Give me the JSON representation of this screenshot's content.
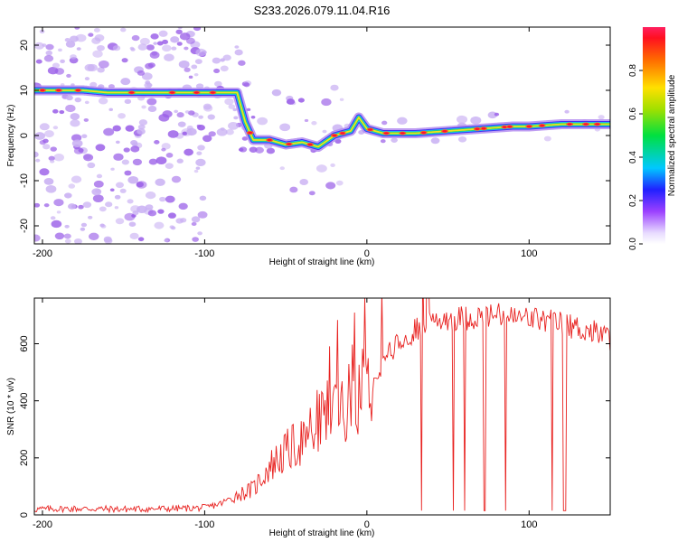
{
  "title": "S233.2026.079.11.04.R16",
  "colors": {
    "snr_line": "#e8211f",
    "axis": "#000000",
    "scatter": "#9b60e8",
    "scatter_light": "#c9b0f3"
  },
  "colorbar": {
    "label": "Normalized spectral amplitude",
    "ticks": [
      "0.0",
      "0.2",
      "0.4",
      "0.6",
      "0.8"
    ],
    "tick_values": [
      0.0,
      0.2,
      0.4,
      0.6,
      0.8
    ],
    "range": [
      0,
      1
    ]
  },
  "chart_data": [
    {
      "type": "heatmap",
      "xlabel": "Height of straight line (km)",
      "ylabel": "Frequency (Hz)",
      "xlim": [
        -205,
        150
      ],
      "ylim": [
        -24,
        24
      ],
      "xticks": [
        -200,
        -100,
        0,
        100
      ],
      "xtick_labels": [
        "-200",
        "-100",
        "0",
        "100"
      ],
      "yticks": [
        -20,
        -10,
        0,
        10,
        20
      ],
      "ytick_labels": [
        "-20",
        "-10",
        "0",
        "10",
        "20"
      ],
      "ridge": {
        "x": [
          -205,
          -190,
          -175,
          -160,
          -150,
          -140,
          -125,
          -110,
          -100,
          -90,
          -80,
          -75,
          -70,
          -60,
          -50,
          -40,
          -30,
          -20,
          -10,
          -5,
          0,
          10,
          30,
          50,
          70,
          90,
          100,
          120,
          150
        ],
        "y": [
          10,
          10,
          10,
          9.5,
          9.5,
          9.5,
          9.5,
          9.5,
          9.5,
          9.5,
          9.5,
          3,
          -1,
          -1,
          -2,
          -1.5,
          -2.5,
          0,
          1,
          4,
          1.5,
          0.5,
          0.5,
          1,
          1.5,
          2,
          2,
          2.5,
          2.5
        ]
      }
    },
    {
      "type": "line",
      "xlabel": "Height of straight line (km)",
      "ylabel": "SNR (10 * v/v)",
      "xlim": [
        -205,
        150
      ],
      "ylim": [
        0,
        760
      ],
      "xticks": [
        -200,
        -100,
        0,
        100
      ],
      "xtick_labels": [
        "-200",
        "-100",
        "0",
        "100"
      ],
      "yticks": [
        0,
        200,
        400,
        600
      ],
      "ytick_labels": [
        "0",
        "200",
        "400",
        "600"
      ],
      "series": [
        {
          "name": "SNR",
          "x": [
            -205,
            -180,
            -150,
            -120,
            -100,
            -90,
            -80,
            -70,
            -60,
            -50,
            -40,
            -30,
            -20,
            -10,
            0,
            10,
            20,
            30,
            40,
            50,
            60,
            70,
            80,
            90,
            100,
            110,
            120,
            130,
            140,
            150
          ],
          "y": [
            20,
            22,
            20,
            22,
            25,
            40,
            70,
            90,
            170,
            220,
            260,
            330,
            380,
            400,
            470,
            540,
            600,
            650,
            680,
            690,
            690,
            695,
            700,
            690,
            690,
            680,
            670,
            655,
            640,
            620
          ]
        }
      ]
    }
  ]
}
